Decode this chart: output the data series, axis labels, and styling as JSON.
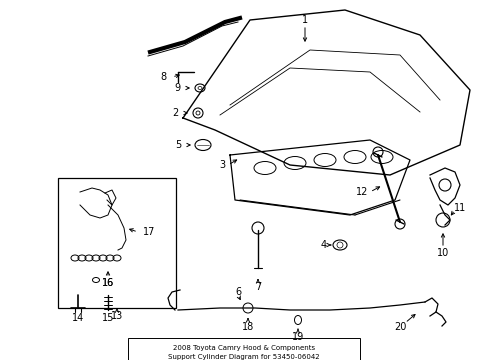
{
  "title": "2008 Toyota Camry Hood & Components\nSupport Cylinder Diagram for 53450-06042",
  "background_color": "#ffffff",
  "line_color": "#000000",
  "text_color": "#000000",
  "fig_width": 4.89,
  "fig_height": 3.6,
  "dpi": 100
}
